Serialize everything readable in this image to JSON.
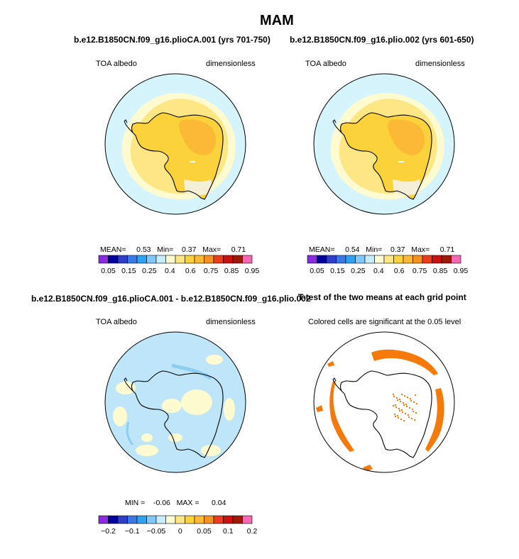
{
  "figure": {
    "title": "MAM",
    "colors": {
      "ocean_bg": "#d6f4fc",
      "land_fill": "#fcd23a",
      "land_dark": "#fbb935",
      "coast_band": "#fde784",
      "pale_band": "#fffbd0",
      "diff_blue": "#bfe6f8",
      "diff_blue2": "#8ccdf2",
      "signif": "#f57a0a",
      "outline": "#000000"
    }
  },
  "panels": [
    {
      "id": "p1",
      "title": "b.e12.B1850CN.f09_g16.plioCA.001 (yrs 701-750)",
      "left_label": "TOA albedo",
      "right_label": "dimensionless",
      "stats": {
        "mean_label": "MEAN=",
        "mean": "0.53",
        "min_label": "Min=",
        "min": "0.37",
        "max_label": "Max=",
        "max": "0.71"
      }
    },
    {
      "id": "p2",
      "title": "b.e12.B1850CN.f09_g16.plio.002 (yrs 601-650)",
      "left_label": "TOA albedo",
      "right_label": "dimensionless",
      "stats": {
        "mean_label": "MEAN=",
        "mean": "0.54",
        "min_label": "Min=",
        "min": "0.37",
        "max_label": "Max=",
        "max": "0.71"
      }
    },
    {
      "id": "p3",
      "title": "b.e12.B1850CN.f09_g16.plioCA.001 - b.e12.B1850CN.f09_g16.plio.002",
      "left_label": "TOA albedo",
      "right_label": "dimensionless",
      "stats": {
        "min_label": "MIN =",
        "min": "-0.06",
        "max_label": "MAX =",
        "max": "0.04"
      }
    },
    {
      "id": "p4",
      "title": "T-test of the two means at each grid point",
      "subtitle": "Colored cells are significant at the 0.05 level"
    }
  ],
  "chart_data": [
    {
      "type": "heatmap",
      "projection": "south polar stereographic",
      "variable": "TOA albedo",
      "units": "dimensionless",
      "title": "b.e12.B1850CN.f09_g16.plioCA.001 (yrs 701-750)",
      "mean": 0.53,
      "min": 0.37,
      "max": 0.71,
      "colorbar_levels": [
        0.05,
        0.1,
        0.15,
        0.2,
        0.25,
        0.3,
        0.4,
        0.5,
        0.6,
        0.7,
        0.75,
        0.8,
        0.85,
        0.9,
        0.95
      ],
      "colorbar_tick_labels": [
        "0.05",
        "0.15",
        "0.25",
        "0.4",
        "0.6",
        "0.75",
        "0.85",
        "0.95"
      ],
      "colorbar_colors": [
        "#8a2be2",
        "#0000a0",
        "#2d3fc8",
        "#3a78e6",
        "#2ea2f2",
        "#7fc8f8",
        "#c8ecfc",
        "#fffbd0",
        "#fde784",
        "#fcd23a",
        "#fbb935",
        "#f6901e",
        "#ee3b1c",
        "#cc1010",
        "#a01808",
        "#f569b4"
      ]
    },
    {
      "type": "heatmap",
      "projection": "south polar stereographic",
      "variable": "TOA albedo",
      "units": "dimensionless",
      "title": "b.e12.B1850CN.f09_g16.plio.002 (yrs 601-650)",
      "mean": 0.54,
      "min": 0.37,
      "max": 0.71,
      "colorbar_levels": [
        0.05,
        0.1,
        0.15,
        0.2,
        0.25,
        0.3,
        0.4,
        0.5,
        0.6,
        0.7,
        0.75,
        0.8,
        0.85,
        0.9,
        0.95
      ],
      "colorbar_tick_labels": [
        "0.05",
        "0.15",
        "0.25",
        "0.4",
        "0.6",
        "0.75",
        "0.85",
        "0.95"
      ],
      "colorbar_colors": [
        "#8a2be2",
        "#0000a0",
        "#2d3fc8",
        "#3a78e6",
        "#2ea2f2",
        "#7fc8f8",
        "#c8ecfc",
        "#fffbd0",
        "#fde784",
        "#fcd23a",
        "#fbb935",
        "#f6901e",
        "#ee3b1c",
        "#cc1010",
        "#a01808",
        "#f569b4"
      ]
    },
    {
      "type": "heatmap",
      "projection": "south polar stereographic",
      "variable": "TOA albedo difference",
      "units": "dimensionless",
      "title": "b.e12.B1850CN.f09_g16.plioCA.001 - b.e12.B1850CN.f09_g16.plio.002",
      "min": -0.06,
      "max": 0.04,
      "colorbar_levels": [
        -0.2,
        -0.15,
        -0.1,
        -0.075,
        -0.05,
        -0.025,
        0,
        0.025,
        0.05,
        0.075,
        0.1,
        0.15,
        0.2,
        0.25,
        0.3
      ],
      "colorbar_tick_labels": [
        "−0.2",
        "−0.1",
        "−0.05",
        "0",
        "0.05",
        "0.1",
        "0.2"
      ],
      "colorbar_colors": [
        "#8a2be2",
        "#0000a0",
        "#2d3fc8",
        "#3a78e6",
        "#2ea2f2",
        "#7fc8f8",
        "#c8ecfc",
        "#fffbd0",
        "#fde784",
        "#fcd23a",
        "#fbb935",
        "#f6901e",
        "#ee3b1c",
        "#cc1010",
        "#a01808",
        "#f569b4"
      ]
    },
    {
      "type": "heatmap",
      "projection": "south polar stereographic",
      "title": "T-test of the two means at each grid point",
      "note": "Colored cells are significant at the 0.05 level",
      "significance_level": 0.05
    }
  ]
}
